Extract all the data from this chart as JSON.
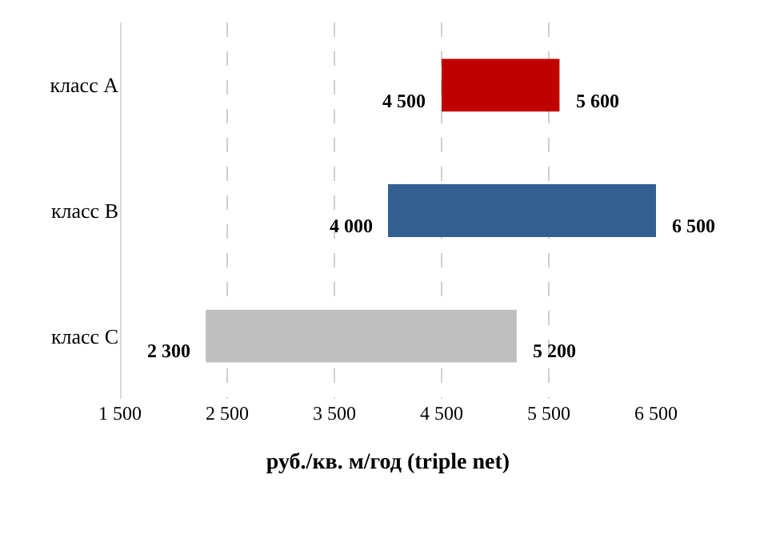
{
  "chart_data": {
    "type": "bar",
    "orientation": "horizontal",
    "xlabel": "руб./кв. м/год (triple net)",
    "categories": [
      "класс A",
      "класс B",
      "класс C"
    ],
    "base": [
      4500,
      4000,
      2300
    ],
    "values": [
      1100,
      2500,
      2900
    ],
    "colors": [
      "#c00000",
      "#335f91",
      "#bfbfbf"
    ],
    "xlim": [
      1500,
      6500
    ],
    "xticks": [
      {
        "value": 1500,
        "label": "1 500"
      },
      {
        "value": 2500,
        "label": "2 500"
      },
      {
        "value": 3500,
        "label": "3 500"
      },
      {
        "value": 4500,
        "label": "4 500"
      },
      {
        "value": 5500,
        "label": "5 500"
      },
      {
        "value": 6500,
        "label": "6 500"
      }
    ],
    "grid": "x",
    "annotations": [
      {
        "text": "4 500",
        "x": 4500,
        "y": "класс A"
      },
      {
        "text": "5 600",
        "x": 5600,
        "y": "класс A"
      },
      {
        "text": "4 000",
        "x": 4000,
        "y": "класс B"
      },
      {
        "text": "6 500",
        "x": 6500,
        "y": "класс B"
      },
      {
        "text": "2 300",
        "x": 2300,
        "y": "класс C"
      },
      {
        "text": "5 200",
        "x": 5200,
        "y": "класс C"
      }
    ]
  }
}
